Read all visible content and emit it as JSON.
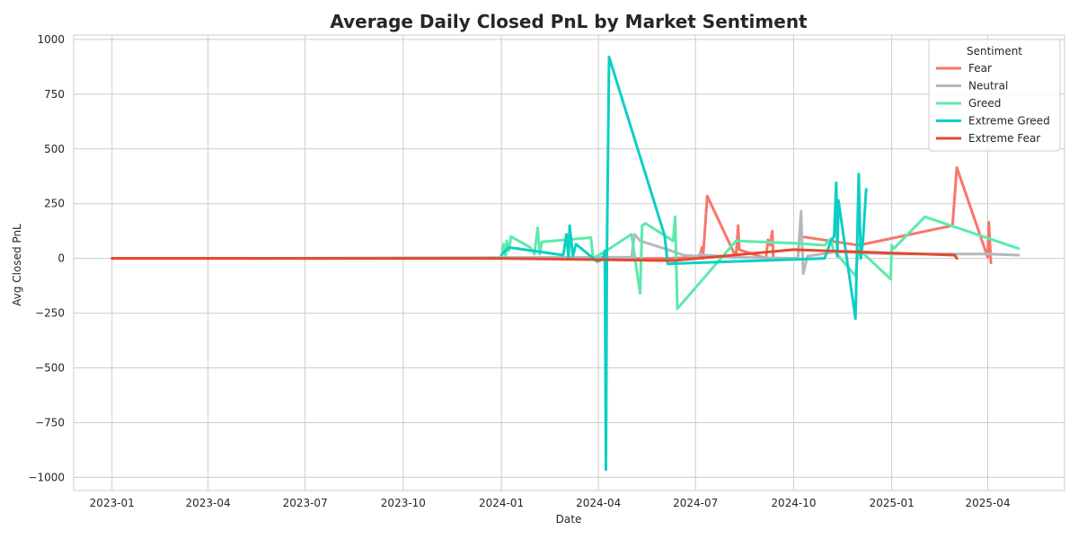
{
  "chart_data": {
    "type": "line",
    "title": "Average Daily Closed PnL by Market Sentiment",
    "xlabel": "Date",
    "ylabel": "Avg Closed PnL",
    "x_ticks": [
      "2023-01",
      "2023-04",
      "2023-07",
      "2023-10",
      "2024-01",
      "2024-04",
      "2024-07",
      "2024-10",
      "2025-01",
      "2025-04"
    ],
    "y_ticks": [
      -1000,
      -750,
      -500,
      -250,
      0,
      250,
      500,
      750,
      1000
    ],
    "y_tick_labels": [
      "−1000",
      "−750",
      "−500",
      "−250",
      "0",
      "250",
      "500",
      "750",
      "1000"
    ],
    "xlim": [
      "2022-11-26",
      "2025-06-12"
    ],
    "ylim": [
      -1060,
      1020
    ],
    "grid": true,
    "legend": {
      "title": "Sentiment",
      "position": "top-right"
    },
    "series": [
      {
        "name": "Fear",
        "color": "#f8766d",
        "points": [
          [
            "2023-01-01",
            0
          ],
          [
            "2023-05-10",
            0
          ],
          [
            "2024-05-10",
            0
          ],
          [
            "2024-06-05",
            0
          ],
          [
            "2024-07-05",
            5
          ],
          [
            "2024-07-07",
            50
          ],
          [
            "2024-07-08",
            0
          ],
          [
            "2024-07-12",
            285
          ],
          [
            "2024-08-08",
            5
          ],
          [
            "2024-08-10",
            150
          ],
          [
            "2024-08-11",
            40
          ],
          [
            "2024-09-05",
            0
          ],
          [
            "2024-09-07",
            85
          ],
          [
            "2024-09-09",
            60
          ],
          [
            "2024-09-11",
            125
          ],
          [
            "2024-09-12",
            0
          ],
          [
            "2024-10-05",
            0
          ],
          [
            "2024-10-07",
            130
          ],
          [
            "2024-10-08",
            100
          ],
          [
            "2024-12-01",
            60
          ],
          [
            "2025-02-27",
            150
          ],
          [
            "2025-03-03",
            415
          ],
          [
            "2025-04-01",
            5
          ],
          [
            "2025-04-02",
            165
          ],
          [
            "2025-04-04",
            -20
          ]
        ]
      },
      {
        "name": "Neutral",
        "color": "#b3b9bf",
        "points": [
          [
            "2023-05-10",
            0
          ],
          [
            "2024-04-01",
            5
          ],
          [
            "2024-05-02",
            5
          ],
          [
            "2024-05-05",
            110
          ],
          [
            "2024-05-10",
            80
          ],
          [
            "2024-06-05",
            40
          ],
          [
            "2024-06-20",
            15
          ],
          [
            "2024-07-03",
            10
          ],
          [
            "2024-07-05",
            20
          ],
          [
            "2024-07-09",
            15
          ],
          [
            "2024-08-08",
            5
          ],
          [
            "2024-10-05",
            0
          ],
          [
            "2024-10-08",
            215
          ],
          [
            "2024-10-10",
            -70
          ],
          [
            "2024-10-14",
            10
          ],
          [
            "2024-11-10",
            30
          ],
          [
            "2025-01-01",
            20
          ],
          [
            "2025-04-01",
            20
          ],
          [
            "2025-04-30",
            15
          ]
        ]
      },
      {
        "name": "Greed",
        "color": "#5ceaaa",
        "points": [
          [
            "2024-01-01",
            0
          ],
          [
            "2024-01-03",
            65
          ],
          [
            "2024-01-05",
            10
          ],
          [
            "2024-01-06",
            80
          ],
          [
            "2024-01-08",
            35
          ],
          [
            "2024-01-10",
            100
          ],
          [
            "2024-01-28",
            50
          ],
          [
            "2024-02-01",
            20
          ],
          [
            "2024-02-04",
            140
          ],
          [
            "2024-02-06",
            20
          ],
          [
            "2024-02-08",
            75
          ],
          [
            "2024-03-25",
            95
          ],
          [
            "2024-03-27",
            0
          ],
          [
            "2024-04-10",
            40
          ],
          [
            "2024-05-02",
            110
          ],
          [
            "2024-05-10",
            -160
          ],
          [
            "2024-05-12",
            150
          ],
          [
            "2024-05-15",
            160
          ],
          [
            "2024-06-10",
            80
          ],
          [
            "2024-06-12",
            190
          ],
          [
            "2024-06-14",
            -230
          ],
          [
            "2024-08-08",
            80
          ],
          [
            "2024-09-30",
            70
          ],
          [
            "2024-10-30",
            60
          ],
          [
            "2024-11-05",
            90
          ],
          [
            "2024-11-07",
            40
          ],
          [
            "2024-11-28",
            -80
          ],
          [
            "2024-11-30",
            10
          ],
          [
            "2024-12-02",
            40
          ],
          [
            "2024-12-06",
            20
          ],
          [
            "2024-12-31",
            -95
          ],
          [
            "2025-01-01",
            60
          ],
          [
            "2025-01-03",
            45
          ],
          [
            "2025-02-01",
            190
          ],
          [
            "2025-04-30",
            45
          ]
        ]
      },
      {
        "name": "Extreme Greed",
        "color": "#0ccfc4",
        "points": [
          [
            "2024-01-01",
            15
          ],
          [
            "2024-01-08",
            50
          ],
          [
            "2024-02-28",
            15
          ],
          [
            "2024-03-02",
            110
          ],
          [
            "2024-03-04",
            0
          ],
          [
            "2024-03-05",
            150
          ],
          [
            "2024-03-08",
            10
          ],
          [
            "2024-03-11",
            65
          ],
          [
            "2024-03-31",
            -15
          ],
          [
            "2024-04-05",
            -5
          ],
          [
            "2024-04-07",
            35
          ],
          [
            "2024-04-08",
            -965
          ],
          [
            "2024-04-09",
            30
          ],
          [
            "2024-04-11",
            920
          ],
          [
            "2024-06-02",
            105
          ],
          [
            "2024-06-05",
            -25
          ],
          [
            "2024-10-30",
            0
          ],
          [
            "2024-11-05",
            80
          ],
          [
            "2024-11-08",
            100
          ],
          [
            "2024-11-10",
            345
          ],
          [
            "2024-11-11",
            10
          ],
          [
            "2024-11-12",
            265
          ],
          [
            "2024-11-28",
            -275
          ],
          [
            "2024-12-01",
            385
          ],
          [
            "2024-12-03",
            0
          ],
          [
            "2024-12-05",
            80
          ],
          [
            "2024-12-08",
            315
          ]
        ]
      },
      {
        "name": "Extreme Fear",
        "color": "#e24a33",
        "points": [
          [
            "2023-01-01",
            0
          ],
          [
            "2023-12-31",
            0
          ],
          [
            "2024-06-10",
            -10
          ],
          [
            "2024-10-01",
            40
          ],
          [
            "2025-03-01",
            15
          ],
          [
            "2025-03-03",
            0
          ]
        ]
      }
    ]
  }
}
